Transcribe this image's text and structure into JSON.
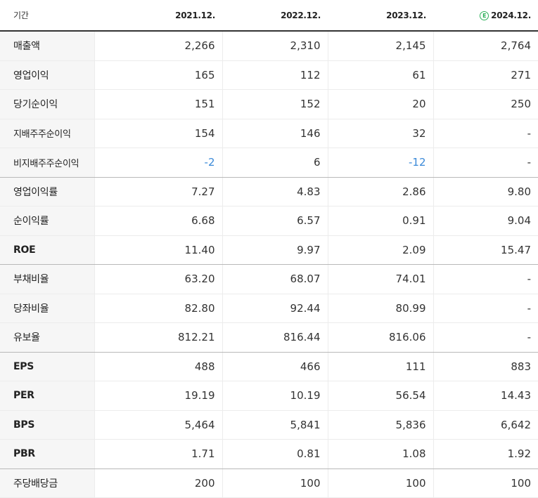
{
  "header": {
    "period_label": "기간",
    "columns": [
      "2021.12.",
      "2022.12.",
      "2023.12.",
      "2024.12."
    ],
    "estimate_icon_text": "E"
  },
  "rows": [
    {
      "label": "매출액",
      "values": [
        "2,266",
        "2,310",
        "2,145",
        "2,764"
      ]
    },
    {
      "label": "영업이익",
      "values": [
        "165",
        "112",
        "61",
        "271"
      ]
    },
    {
      "label": "당기순이익",
      "values": [
        "151",
        "152",
        "20",
        "250"
      ]
    },
    {
      "label": "지배주주순이익",
      "values": [
        "154",
        "146",
        "32",
        "-"
      ]
    },
    {
      "label": "비지배주주순이익",
      "values": [
        "-2",
        "6",
        "-12",
        "-"
      ]
    },
    {
      "label": "영업이익률",
      "values": [
        "7.27",
        "4.83",
        "2.86",
        "9.80"
      ]
    },
    {
      "label": "순이익률",
      "values": [
        "6.68",
        "6.57",
        "0.91",
        "9.04"
      ]
    },
    {
      "label": "ROE",
      "values": [
        "11.40",
        "9.97",
        "2.09",
        "15.47"
      ]
    },
    {
      "label": "부채비율",
      "values": [
        "63.20",
        "68.07",
        "74.01",
        "-"
      ]
    },
    {
      "label": "당좌비율",
      "values": [
        "82.80",
        "92.44",
        "80.99",
        "-"
      ]
    },
    {
      "label": "유보율",
      "values": [
        "812.21",
        "816.44",
        "816.06",
        "-"
      ]
    },
    {
      "label": "EPS",
      "values": [
        "488",
        "466",
        "111",
        "883"
      ]
    },
    {
      "label": "PER",
      "values": [
        "19.19",
        "10.19",
        "56.54",
        "14.43"
      ]
    },
    {
      "label": "BPS",
      "values": [
        "5,464",
        "5,841",
        "5,836",
        "6,642"
      ]
    },
    {
      "label": "PBR",
      "values": [
        "1.71",
        "0.81",
        "1.08",
        "1.92"
      ]
    },
    {
      "label": "주당배당금",
      "values": [
        "200",
        "100",
        "100",
        "100"
      ]
    }
  ],
  "colors": {
    "negative": "#3a89d8",
    "estimate": "#2eb05a",
    "label_bg": "#f6f6f6"
  }
}
